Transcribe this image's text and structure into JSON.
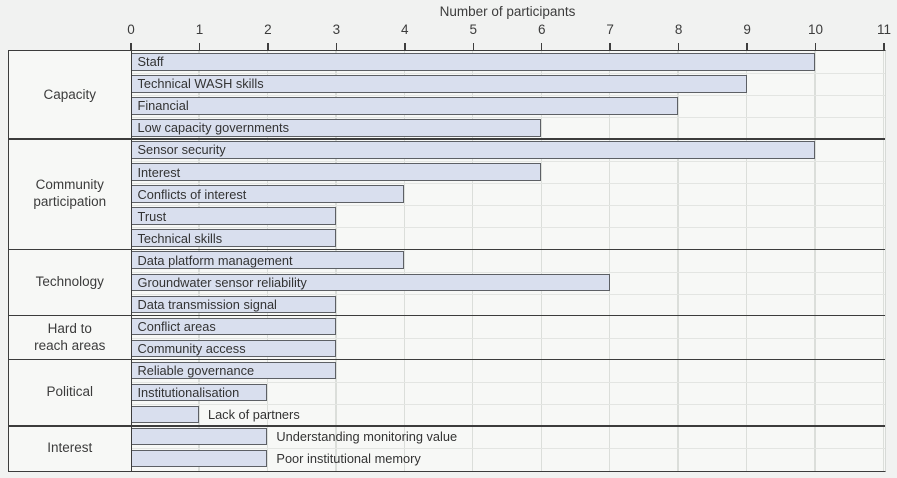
{
  "chart_data": {
    "type": "bar",
    "orientation": "horizontal",
    "title": "Number of participants",
    "xlabel": "Number of participants",
    "xlim": [
      0,
      11
    ],
    "xticks": [
      "0",
      "1",
      "2",
      "3",
      "4",
      "5",
      "6",
      "7",
      "8",
      "9",
      "10",
      "11"
    ],
    "grid": "vertical-on",
    "legend": "none",
    "groups": [
      {
        "label": "Capacity",
        "bars": [
          {
            "label": "Staff",
            "value": 10,
            "label_position": "inside"
          },
          {
            "label": "Technical WASH skills",
            "value": 9,
            "label_position": "inside"
          },
          {
            "label": "Financial",
            "value": 8,
            "label_position": "inside"
          },
          {
            "label": "Low capacity governments",
            "value": 6,
            "label_position": "inside"
          }
        ]
      },
      {
        "label": "Community participation",
        "bars": [
          {
            "label": "Sensor security",
            "value": 10,
            "label_position": "inside"
          },
          {
            "label": "Interest",
            "value": 6,
            "label_position": "inside"
          },
          {
            "label": "Conflicts of interest",
            "value": 4,
            "label_position": "inside"
          },
          {
            "label": "Trust",
            "value": 3,
            "label_position": "inside"
          },
          {
            "label": "Technical skills",
            "value": 3,
            "label_position": "inside"
          }
        ]
      },
      {
        "label": "Technology",
        "bars": [
          {
            "label": "Data platform management",
            "value": 4,
            "label_position": "inside"
          },
          {
            "label": "Groundwater sensor reliability",
            "value": 7,
            "label_position": "inside"
          },
          {
            "label": "Data transmission signal",
            "value": 3,
            "label_position": "inside"
          }
        ]
      },
      {
        "label": "Hard to reach areas",
        "bars": [
          {
            "label": "Conflict areas",
            "value": 3,
            "label_position": "inside"
          },
          {
            "label": "Community access",
            "value": 3,
            "label_position": "inside"
          }
        ]
      },
      {
        "label": "Political",
        "bars": [
          {
            "label": "Reliable governance",
            "value": 3,
            "label_position": "inside"
          },
          {
            "label": "Institutionalisation",
            "value": 2,
            "label_position": "inside"
          },
          {
            "label": "Lack of partners",
            "value": 1,
            "label_position": "outside"
          }
        ]
      },
      {
        "label": "Interest",
        "bars": [
          {
            "label": "Understanding monitoring value",
            "value": 2,
            "label_position": "outside"
          },
          {
            "label": "Poor institutional memory",
            "value": 2,
            "label_position": "outside"
          }
        ]
      }
    ],
    "colors": {
      "bar_fill": "#d9dfee",
      "bar_border": "#5d6065",
      "gridline": "#dbdeda",
      "frame": "#3c3c3c",
      "plot_background": "#f7f8f6",
      "page_background": "#f1f2f1",
      "text": "#3a3a3a"
    }
  }
}
